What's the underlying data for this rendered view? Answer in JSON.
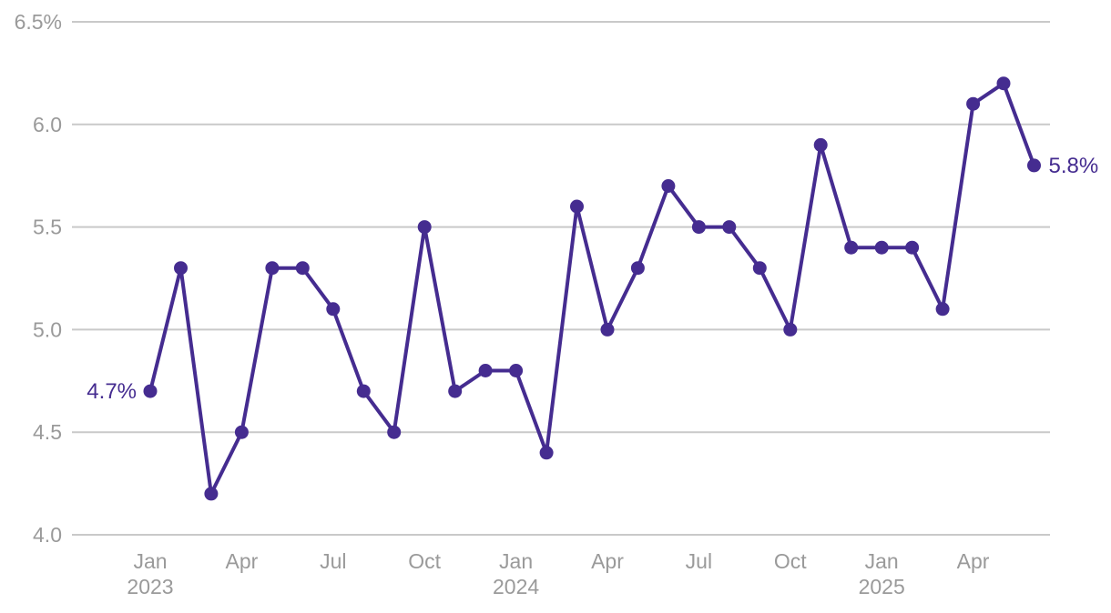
{
  "chart_data": {
    "type": "line",
    "title": "",
    "xlabel": "",
    "ylabel": "",
    "x": [
      "Jan 2023",
      "Feb 2023",
      "Mar 2023",
      "Apr 2023",
      "May 2023",
      "Jun 2023",
      "Jul 2023",
      "Aug 2023",
      "Sep 2023",
      "Oct 2023",
      "Nov 2023",
      "Dec 2023",
      "Jan 2024",
      "Feb 2024",
      "Mar 2024",
      "Apr 2024",
      "May 2024",
      "Jun 2024",
      "Jul 2024",
      "Aug 2024",
      "Sep 2024",
      "Oct 2024",
      "Nov 2024",
      "Dec 2024",
      "Jan 2025",
      "Feb 2025",
      "Mar 2025",
      "Apr 2025",
      "May 2025",
      "Jun 2025"
    ],
    "values": [
      4.7,
      5.3,
      4.2,
      4.5,
      5.3,
      5.3,
      5.1,
      4.7,
      4.5,
      5.5,
      4.7,
      4.8,
      4.8,
      4.4,
      5.6,
      5.0,
      5.3,
      5.7,
      5.5,
      5.5,
      5.3,
      5.0,
      5.9,
      5.4,
      5.4,
      5.4,
      5.1,
      6.1,
      6.2,
      5.8
    ],
    "ylim": [
      4.0,
      6.5
    ],
    "yticks": [
      {
        "value": 4.0,
        "label": "4.0"
      },
      {
        "value": 4.5,
        "label": "4.5"
      },
      {
        "value": 5.0,
        "label": "5.0"
      },
      {
        "value": 5.5,
        "label": "5.5"
      },
      {
        "value": 6.0,
        "label": "6.0"
      },
      {
        "value": 6.5,
        "label": "6.5%"
      }
    ],
    "xticks": [
      {
        "index": 0,
        "label": "Jan",
        "sublabel": "2023"
      },
      {
        "index": 3,
        "label": "Apr",
        "sublabel": ""
      },
      {
        "index": 6,
        "label": "Jul",
        "sublabel": ""
      },
      {
        "index": 9,
        "label": "Oct",
        "sublabel": ""
      },
      {
        "index": 12,
        "label": "Jan",
        "sublabel": "2024"
      },
      {
        "index": 15,
        "label": "Apr",
        "sublabel": ""
      },
      {
        "index": 18,
        "label": "Jul",
        "sublabel": ""
      },
      {
        "index": 21,
        "label": "Oct",
        "sublabel": ""
      },
      {
        "index": 24,
        "label": "Jan",
        "sublabel": "2025"
      },
      {
        "index": 27,
        "label": "Apr",
        "sublabel": ""
      }
    ],
    "annotations": {
      "first_point_label": "4.7%",
      "last_point_label": "5.8%"
    },
    "style": {
      "line_color": "#452c90",
      "marker_color": "#452c90",
      "annotation_color": "#452c90",
      "grid_color": "#c9c9c9",
      "tick_label_color": "#9a9a9a",
      "background_color": "#ffffff"
    },
    "grid": "horizontal-only",
    "legend": "none",
    "marker": "circle"
  }
}
